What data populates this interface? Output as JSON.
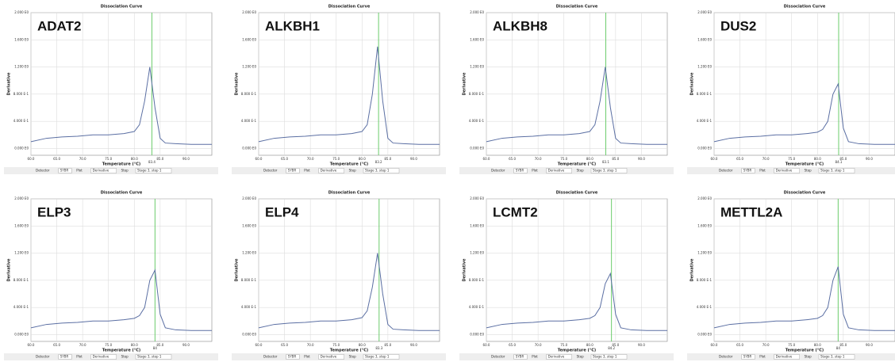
{
  "controls": [
    "Detector",
    "SYBR",
    "Plot",
    "Derivative",
    "Step",
    "Stage 3, step 1"
  ],
  "chart_data": [
    {
      "type": "line",
      "label": "ADAT2",
      "title": "Dissociation Curve",
      "x_label": "Temperature (°C)",
      "y_label": "Derivative",
      "marker": 83.4,
      "x": [
        60,
        63,
        66,
        69,
        72,
        75,
        78,
        80,
        81,
        82,
        83,
        84,
        85,
        86,
        88,
        91,
        95
      ],
      "series": [
        {
          "name": "ADAT2",
          "color": "#5b6fa3",
          "values": [
            0.1,
            0.15,
            0.17,
            0.18,
            0.2,
            0.2,
            0.22,
            0.25,
            0.35,
            0.7,
            1.2,
            0.6,
            0.15,
            0.08,
            0.07,
            0.06,
            0.06
          ]
        }
      ],
      "xlim": [
        60,
        95
      ],
      "xticks": [
        {
          "value": 60,
          "label": "60.0"
        },
        {
          "value": 65,
          "label": "65.0"
        },
        {
          "value": 70,
          "label": "70.0"
        },
        {
          "value": 75,
          "label": "75.0"
        },
        {
          "value": 80,
          "label": "80.0"
        },
        {
          "value": 85,
          "label": "85.0"
        },
        {
          "value": 90,
          "label": "90.0"
        }
      ],
      "ylim": [
        -0.1,
        2.0
      ],
      "yticks": [
        {
          "value": 0,
          "label": "0.000 E0"
        },
        {
          "value": 0.4,
          "label": "4.000 E-1"
        },
        {
          "value": 0.8,
          "label": "8.000 E-1"
        },
        {
          "value": 1.2,
          "label": "1.200 E0"
        },
        {
          "value": 1.6,
          "label": "1.600 E0"
        },
        {
          "value": 2.0,
          "label": "2.000 E0"
        }
      ],
      "grid": true
    },
    {
      "type": "line",
      "label": "ALKBH1",
      "title": "Dissociation Curve",
      "x_label": "Temperature (°C)",
      "y_label": "Derivative",
      "marker": 83.2,
      "x": [
        60,
        63,
        66,
        69,
        72,
        75,
        78,
        80,
        81,
        82,
        83,
        84,
        85,
        86,
        88,
        91,
        95
      ],
      "series": [
        {
          "name": "ALKBH1",
          "color": "#5b6fa3",
          "values": [
            0.1,
            0.15,
            0.17,
            0.18,
            0.2,
            0.2,
            0.22,
            0.25,
            0.35,
            0.8,
            1.5,
            0.7,
            0.15,
            0.08,
            0.07,
            0.06,
            0.06
          ]
        }
      ],
      "xlim": [
        60,
        95
      ],
      "xticks": [
        {
          "value": 60,
          "label": "60.0"
        },
        {
          "value": 65,
          "label": "65.0"
        },
        {
          "value": 70,
          "label": "70.0"
        },
        {
          "value": 75,
          "label": "75.0"
        },
        {
          "value": 80,
          "label": "80.0"
        },
        {
          "value": 85,
          "label": "85.0"
        },
        {
          "value": 90,
          "label": "90.0"
        }
      ],
      "ylim": [
        -0.1,
        2.0
      ],
      "yticks": [
        {
          "value": 0,
          "label": "0.000 E0"
        },
        {
          "value": 0.4,
          "label": "4.000 E-1"
        },
        {
          "value": 0.8,
          "label": "8.000 E-1"
        },
        {
          "value": 1.2,
          "label": "1.200 E0"
        },
        {
          "value": 1.6,
          "label": "1.600 E0"
        },
        {
          "value": 2.0,
          "label": "2.000 E0"
        }
      ],
      "grid": true
    },
    {
      "type": "line",
      "label": "ALKBH8",
      "title": "Dissociation Curve",
      "x_label": "Temperature (°C)",
      "y_label": "Derivative",
      "marker": 83.1,
      "x": [
        60,
        63,
        66,
        69,
        72,
        75,
        78,
        80,
        81,
        82,
        83,
        84,
        85,
        86,
        88,
        91,
        95
      ],
      "series": [
        {
          "name": "ALKBH8",
          "color": "#5b6fa3",
          "values": [
            0.1,
            0.15,
            0.17,
            0.18,
            0.2,
            0.2,
            0.22,
            0.25,
            0.35,
            0.7,
            1.2,
            0.6,
            0.15,
            0.08,
            0.07,
            0.06,
            0.06
          ]
        }
      ],
      "xlim": [
        60,
        95
      ],
      "xticks": [
        {
          "value": 60,
          "label": "60.0"
        },
        {
          "value": 65,
          "label": "65.0"
        },
        {
          "value": 70,
          "label": "70.0"
        },
        {
          "value": 75,
          "label": "75.0"
        },
        {
          "value": 80,
          "label": "80.0"
        },
        {
          "value": 85,
          "label": "85.0"
        },
        {
          "value": 90,
          "label": "90.0"
        }
      ],
      "ylim": [
        -0.1,
        2.0
      ],
      "yticks": [
        {
          "value": 0,
          "label": "0.000 E0"
        },
        {
          "value": 0.4,
          "label": "4.000 E-1"
        },
        {
          "value": 0.8,
          "label": "8.000 E-1"
        },
        {
          "value": 1.2,
          "label": "1.200 E0"
        },
        {
          "value": 1.6,
          "label": "1.600 E0"
        },
        {
          "value": 2.0,
          "label": "2.000 E0"
        }
      ],
      "grid": true
    },
    {
      "type": "line",
      "label": "DUS2",
      "title": "Dissociation Curve",
      "x_label": "Temperature (°C)",
      "y_label": "Derivative",
      "marker": 84.1,
      "x": [
        60,
        63,
        66,
        69,
        72,
        75,
        78,
        80,
        81,
        82,
        83,
        84,
        85,
        86,
        88,
        91,
        95
      ],
      "series": [
        {
          "name": "DUS2",
          "color": "#5b6fa3",
          "values": [
            0.1,
            0.15,
            0.17,
            0.18,
            0.2,
            0.2,
            0.22,
            0.24,
            0.28,
            0.4,
            0.8,
            0.95,
            0.3,
            0.1,
            0.07,
            0.06,
            0.06
          ]
        }
      ],
      "xlim": [
        60,
        95
      ],
      "xticks": [
        {
          "value": 60,
          "label": "60.0"
        },
        {
          "value": 65,
          "label": "65.0"
        },
        {
          "value": 70,
          "label": "70.0"
        },
        {
          "value": 75,
          "label": "75.0"
        },
        {
          "value": 80,
          "label": "80.0"
        },
        {
          "value": 85,
          "label": "85.0"
        },
        {
          "value": 90,
          "label": "90.0"
        }
      ],
      "ylim": [
        -0.1,
        2.0
      ],
      "yticks": [
        {
          "value": 0,
          "label": "0.000 E0"
        },
        {
          "value": 0.4,
          "label": "4.000 E-1"
        },
        {
          "value": 0.8,
          "label": "8.000 E-1"
        },
        {
          "value": 1.2,
          "label": "1.200 E0"
        },
        {
          "value": 1.6,
          "label": "1.600 E0"
        },
        {
          "value": 2.0,
          "label": "2.000 E0"
        }
      ],
      "grid": true
    },
    {
      "type": "line",
      "label": "ELP3",
      "title": "Dissociation Curve",
      "x_label": "Temperature (°C)",
      "y_label": "Derivative",
      "marker": 84.0,
      "x": [
        60,
        63,
        66,
        69,
        72,
        75,
        78,
        80,
        81,
        82,
        83,
        84,
        85,
        86,
        88,
        91,
        95
      ],
      "series": [
        {
          "name": "ELP3",
          "color": "#5b6fa3",
          "values": [
            0.1,
            0.15,
            0.17,
            0.18,
            0.2,
            0.2,
            0.22,
            0.24,
            0.28,
            0.4,
            0.8,
            0.95,
            0.3,
            0.1,
            0.07,
            0.06,
            0.06
          ]
        }
      ],
      "xlim": [
        60,
        95
      ],
      "xticks": [
        {
          "value": 60,
          "label": "60.0"
        },
        {
          "value": 65,
          "label": "65.0"
        },
        {
          "value": 70,
          "label": "70.0"
        },
        {
          "value": 75,
          "label": "75.0"
        },
        {
          "value": 80,
          "label": "80.0"
        },
        {
          "value": 85,
          "label": "85.0"
        },
        {
          "value": 90,
          "label": "90.0"
        }
      ],
      "ylim": [
        -0.1,
        2.0
      ],
      "yticks": [
        {
          "value": 0,
          "label": "0.000 E0"
        },
        {
          "value": 0.4,
          "label": "4.000 E-1"
        },
        {
          "value": 0.8,
          "label": "8.000 E-1"
        },
        {
          "value": 1.2,
          "label": "1.200 E0"
        },
        {
          "value": 1.6,
          "label": "1.600 E0"
        },
        {
          "value": 2.0,
          "label": "2.000 E0"
        }
      ],
      "grid": true
    },
    {
      "type": "line",
      "label": "ELP4",
      "title": "Dissociation Curve",
      "x_label": "Temperature (°C)",
      "y_label": "Derivative",
      "marker": 83.3,
      "x": [
        60,
        63,
        66,
        69,
        72,
        75,
        78,
        80,
        81,
        82,
        83,
        84,
        85,
        86,
        88,
        91,
        95
      ],
      "series": [
        {
          "name": "ELP4",
          "color": "#5b6fa3",
          "values": [
            0.1,
            0.15,
            0.17,
            0.18,
            0.2,
            0.2,
            0.22,
            0.25,
            0.35,
            0.7,
            1.2,
            0.6,
            0.15,
            0.08,
            0.07,
            0.06,
            0.06
          ]
        }
      ],
      "xlim": [
        60,
        95
      ],
      "xticks": [
        {
          "value": 60,
          "label": "60.0"
        },
        {
          "value": 65,
          "label": "65.0"
        },
        {
          "value": 70,
          "label": "70.0"
        },
        {
          "value": 75,
          "label": "75.0"
        },
        {
          "value": 80,
          "label": "80.0"
        },
        {
          "value": 85,
          "label": "85.0"
        },
        {
          "value": 90,
          "label": "90.0"
        }
      ],
      "ylim": [
        -0.1,
        2.0
      ],
      "yticks": [
        {
          "value": 0,
          "label": "0.000 E0"
        },
        {
          "value": 0.4,
          "label": "4.000 E-1"
        },
        {
          "value": 0.8,
          "label": "8.000 E-1"
        },
        {
          "value": 1.2,
          "label": "1.200 E0"
        },
        {
          "value": 1.6,
          "label": "1.600 E0"
        },
        {
          "value": 2.0,
          "label": "2.000 E0"
        }
      ],
      "grid": true
    },
    {
      "type": "line",
      "label": "LCMT2",
      "title": "Dissociation Curve",
      "x_label": "Temperature (°C)",
      "y_label": "Derivative",
      "marker": 84.2,
      "x": [
        60,
        63,
        66,
        69,
        72,
        75,
        78,
        80,
        81,
        82,
        83,
        84,
        85,
        86,
        88,
        91,
        95
      ],
      "series": [
        {
          "name": "LCMT2",
          "color": "#5b6fa3",
          "values": [
            0.1,
            0.15,
            0.17,
            0.18,
            0.2,
            0.2,
            0.22,
            0.24,
            0.28,
            0.4,
            0.75,
            0.9,
            0.3,
            0.1,
            0.07,
            0.06,
            0.06
          ]
        }
      ],
      "xlim": [
        60,
        95
      ],
      "xticks": [
        {
          "value": 60,
          "label": "60.0"
        },
        {
          "value": 65,
          "label": "65.0"
        },
        {
          "value": 70,
          "label": "70.0"
        },
        {
          "value": 75,
          "label": "75.0"
        },
        {
          "value": 80,
          "label": "80.0"
        },
        {
          "value": 85,
          "label": "85.0"
        },
        {
          "value": 90,
          "label": "90.0"
        }
      ],
      "ylim": [
        -0.1,
        2.0
      ],
      "yticks": [
        {
          "value": 0,
          "label": "0.000 E0"
        },
        {
          "value": 0.4,
          "label": "4.000 E-1"
        },
        {
          "value": 0.8,
          "label": "8.000 E-1"
        },
        {
          "value": 1.2,
          "label": "1.200 E0"
        },
        {
          "value": 1.6,
          "label": "1.600 E0"
        },
        {
          "value": 2.0,
          "label": "2.000 E0"
        }
      ],
      "grid": true
    },
    {
      "type": "line",
      "label": "METTL2A",
      "title": "Dissociation Curve",
      "x_label": "Temperature (°C)",
      "y_label": "Derivative",
      "marker": 84.0,
      "x": [
        60,
        63,
        66,
        69,
        72,
        75,
        78,
        80,
        81,
        82,
        83,
        84,
        85,
        86,
        88,
        91,
        95
      ],
      "series": [
        {
          "name": "METTL2A",
          "color": "#5b6fa3",
          "values": [
            0.1,
            0.15,
            0.17,
            0.18,
            0.2,
            0.2,
            0.22,
            0.24,
            0.28,
            0.4,
            0.8,
            1.0,
            0.3,
            0.1,
            0.07,
            0.06,
            0.06
          ]
        }
      ],
      "xlim": [
        60,
        95
      ],
      "xticks": [
        {
          "value": 60,
          "label": "60.0"
        },
        {
          "value": 65,
          "label": "65.0"
        },
        {
          "value": 70,
          "label": "70.0"
        },
        {
          "value": 75,
          "label": "75.0"
        },
        {
          "value": 80,
          "label": "80.0"
        },
        {
          "value": 85,
          "label": "85.0"
        },
        {
          "value": 90,
          "label": "90.0"
        }
      ],
      "ylim": [
        -0.1,
        2.0
      ],
      "yticks": [
        {
          "value": 0,
          "label": "0.000 E0"
        },
        {
          "value": 0.4,
          "label": "4.000 E-1"
        },
        {
          "value": 0.8,
          "label": "8.000 E-1"
        },
        {
          "value": 1.2,
          "label": "1.200 E0"
        },
        {
          "value": 1.6,
          "label": "1.600 E0"
        },
        {
          "value": 2.0,
          "label": "2.000 E0"
        }
      ],
      "grid": true
    }
  ]
}
